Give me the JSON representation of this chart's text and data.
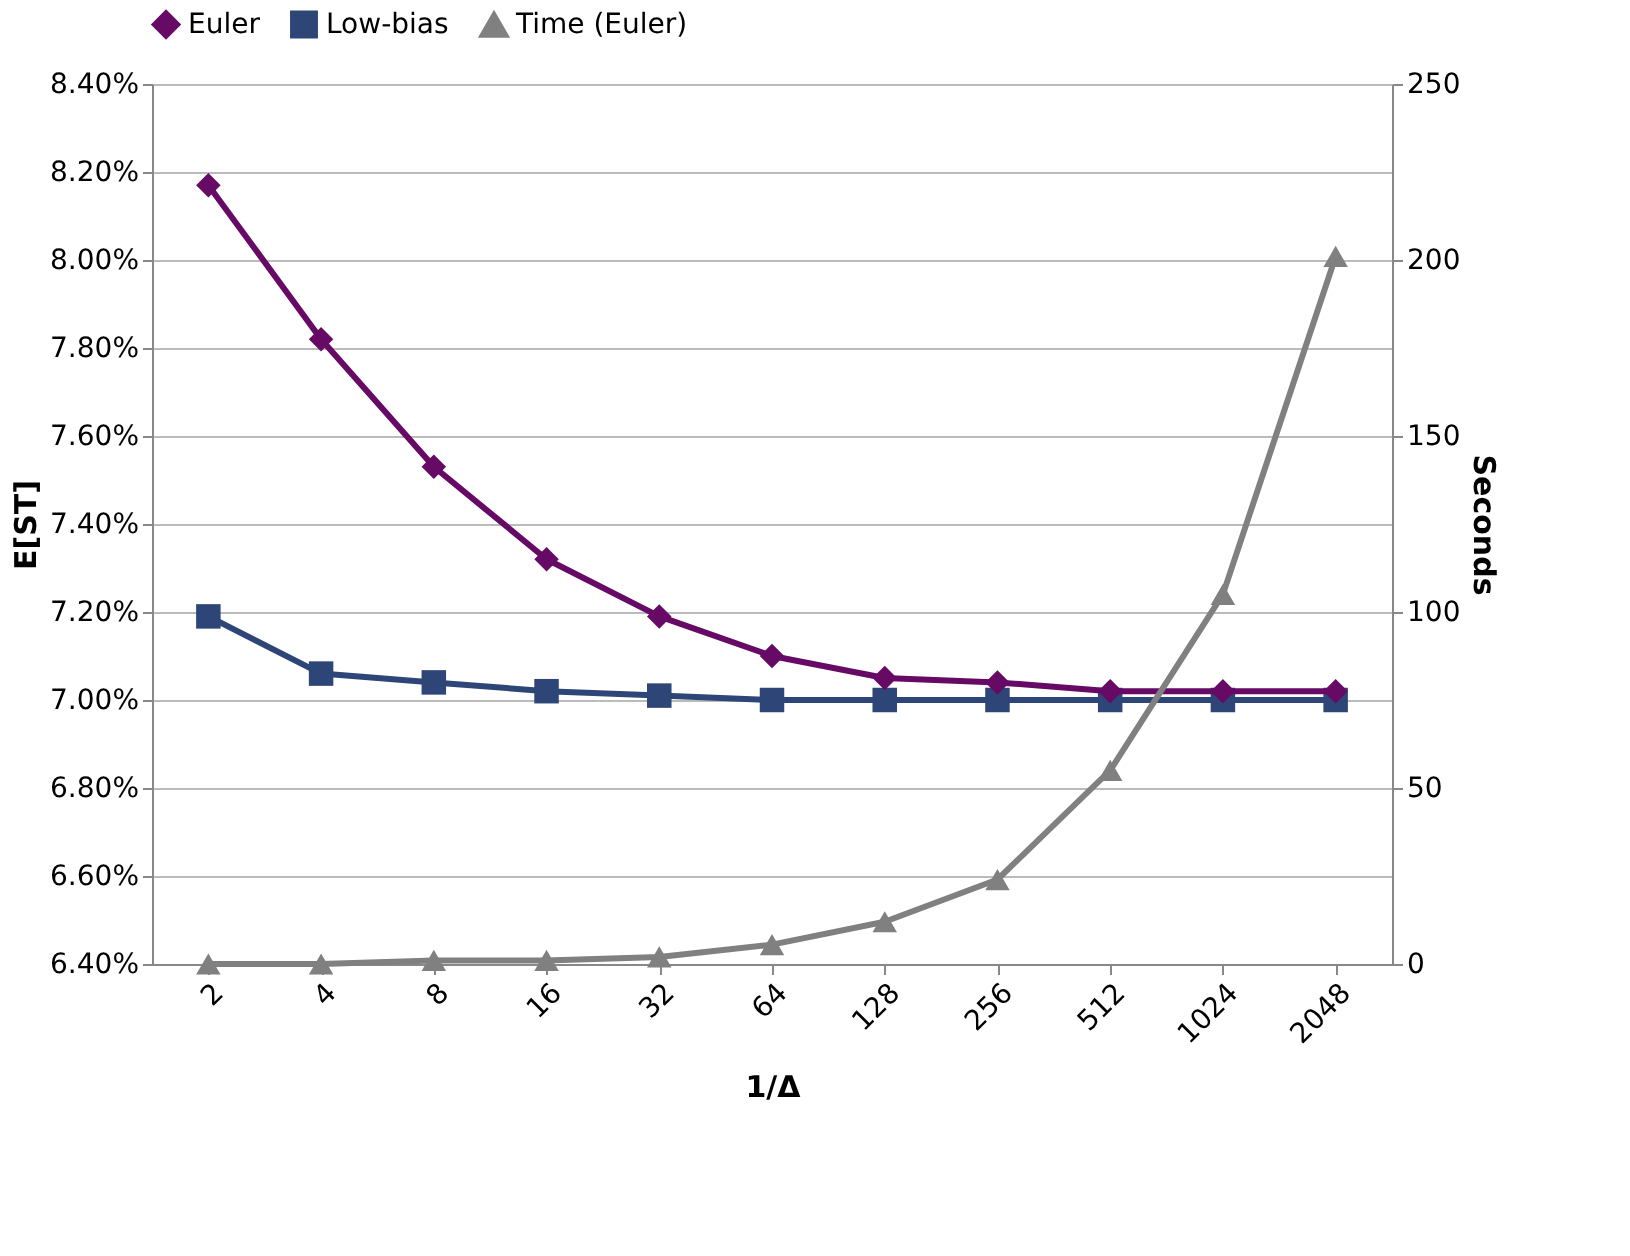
{
  "chart_data": {
    "type": "line",
    "categories": [
      "2",
      "4",
      "8",
      "16",
      "32",
      "64",
      "128",
      "256",
      "512",
      "1024",
      "2048"
    ],
    "xlabel": "1/Δ",
    "ylabel": "E[ST]",
    "y2label": "Seconds",
    "series": [
      {
        "name": "Euler",
        "color": "#660a66",
        "marker": "diamond",
        "values": [
          8.17,
          7.82,
          7.53,
          7.32,
          7.19,
          7.1,
          7.05,
          7.04,
          7.02,
          7.02,
          7.02
        ]
      },
      {
        "name": "Low-bias",
        "color": "#2e4577",
        "marker": "square",
        "values": [
          7.19,
          7.06,
          7.04,
          7.02,
          7.01,
          7.0,
          7.0,
          7.0,
          7.0,
          7.0,
          7.0
        ]
      },
      {
        "name": "Time (Euler)",
        "color": "#808080",
        "marker": "triangle",
        "axis": "y2",
        "values": [
          0,
          0,
          1,
          1,
          2,
          5.5,
          12,
          24,
          55,
          105,
          201
        ]
      }
    ],
    "ylim": [
      6.4,
      8.4
    ],
    "yticks": [
      {
        "value": 6.4,
        "label": "6.40%"
      },
      {
        "value": 6.6,
        "label": "6.60%"
      },
      {
        "value": 6.8,
        "label": "6.80%"
      },
      {
        "value": 7.0,
        "label": "7.00%"
      },
      {
        "value": 7.2,
        "label": "7.20%"
      },
      {
        "value": 7.4,
        "label": "7.40%"
      },
      {
        "value": 7.6,
        "label": "7.60%"
      },
      {
        "value": 7.8,
        "label": "7.80%"
      },
      {
        "value": 8.0,
        "label": "8.00%"
      },
      {
        "value": 8.2,
        "label": "8.20%"
      },
      {
        "value": 8.4,
        "label": "8.40%"
      }
    ],
    "y2lim": [
      0,
      250
    ],
    "y2ticks": [
      0,
      50,
      100,
      150,
      200,
      250
    ],
    "grid": "y",
    "legend": "top"
  }
}
